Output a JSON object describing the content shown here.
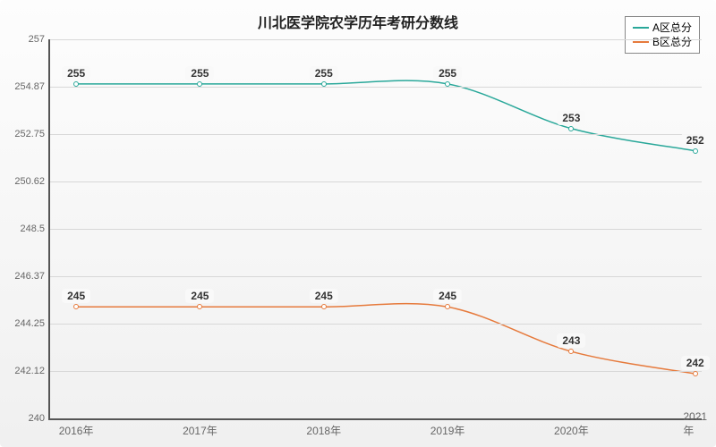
{
  "title": "川北医学院农学历年考研分数线",
  "title_fontsize": 16,
  "background_gradient": [
    "#fdfdfd",
    "#f0f0f0"
  ],
  "axis_color": "#555555",
  "grid_color": "#d8d8d8",
  "tick_color": "#666666",
  "label_fontsize": 11,
  "value_label_fontsize": 12,
  "legend": {
    "border_color": "#888888",
    "background": "#ffffff"
  },
  "x": {
    "categories": [
      "2016年",
      "2017年",
      "2018年",
      "2019年",
      "2020年",
      "2021年"
    ],
    "positions_pct": [
      4,
      23,
      42,
      61,
      80,
      99
    ]
  },
  "y": {
    "min": 240,
    "max": 257,
    "ticks": [
      240,
      242.12,
      244.25,
      246.37,
      248.5,
      250.62,
      252.75,
      254.87,
      257
    ],
    "tick_labels": [
      "240",
      "242.12",
      "244.25",
      "246.37",
      "248.5",
      "250.62",
      "252.75",
      "254.87",
      "257"
    ]
  },
  "series": [
    {
      "name": "A区总分",
      "color": "#2aa89a",
      "line_width": 1.5,
      "marker": "circle",
      "values": [
        255,
        255,
        255,
        255,
        253,
        252
      ],
      "value_labels": [
        "255",
        "255",
        "255",
        "255",
        "253",
        "252"
      ]
    },
    {
      "name": "B区总分",
      "color": "#e67a3c",
      "line_width": 1.5,
      "marker": "circle",
      "values": [
        245,
        245,
        245,
        245,
        243,
        242
      ],
      "value_labels": [
        "245",
        "245",
        "245",
        "245",
        "243",
        "242"
      ]
    }
  ]
}
